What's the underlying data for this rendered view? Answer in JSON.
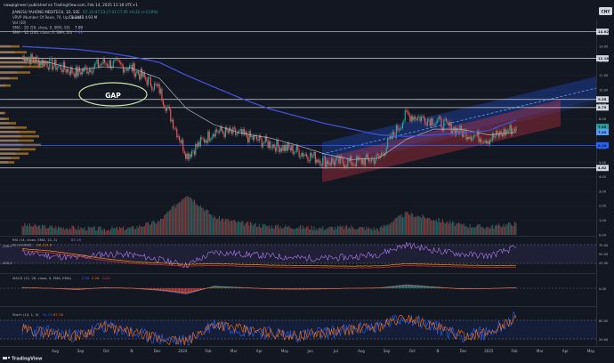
{
  "header": {
    "publisher": "nawpigineeri published on TradingView.com, Feb 14, 2025 13:18 UTC+1",
    "symbol": "JIANGSU YAHONG MEDITECH, 1D, SSE",
    "ohlc": "O7.10 H7.53 L7.01 C7.45 +0.32 (+4.50%)",
    "vrvp_label": "VRVP (Number Of Rows, 70, Up/Down)",
    "vrvp_vals": "3.144B 4.93 M",
    "vol_label": "Vol (30)",
    "sma1_label": "SMA - 1D (50, close, 0, SMA, 50)",
    "sma1_val": "7.09",
    "sma2_label": "SMA - 1D (200, close, 0, SMA, 20)",
    "sma2_val": "7.93"
  },
  "currency": "CNY",
  "gap_label": "GAP",
  "right_axis": {
    "ticks": [
      "14.00",
      "13.00",
      "12.00",
      "11.00",
      "10.00",
      "9.00",
      "8.00",
      "7.00",
      "6.00",
      "5.00",
      "4.00",
      "3.00",
      "2.00",
      "1.00",
      "0.00"
    ],
    "badges": [
      {
        "text": "14.02",
        "color": "#d1d4dc"
      },
      {
        "text": "12.18",
        "color": "#d1d4dc"
      },
      {
        "text": "9.35",
        "color": "#d1d4dc"
      },
      {
        "text": "8.79",
        "color": "#d1d4dc"
      },
      {
        "text": "7.45",
        "color": "#26a69a"
      },
      {
        "text": "7.09",
        "color": "#5b9cf6"
      },
      {
        "text": "6.18",
        "color": "#2962ff"
      },
      {
        "text": "4.62",
        "color": "#d1d4dc"
      }
    ]
  },
  "rsi": {
    "label": "RSI (14, close, SMA, 14, 2)",
    "value": "67.19",
    "sub_label": "Accum/Dist",
    "sub_value": "-52.111 K",
    "left_ticks": [
      "-200.0",
      "-400.0"
    ],
    "right_ticks": [
      "75.00",
      "50.00",
      "25.00"
    ]
  },
  "macd": {
    "label": "MACD (12, 26, close, 9, EMA, EMA)",
    "values": [
      "0.09",
      "0.26",
      "-0.20"
    ],
    "right_ticks": [
      "0.00"
    ]
  },
  "stoch": {
    "label": "Stoch (14, 1, 3)",
    "values": [
      "91.39",
      "87.18"
    ],
    "right_ticks": [
      "80.00",
      "20.00"
    ]
  },
  "x_axis": [
    "Aug",
    "Sep",
    "Oct",
    "N",
    "Dec",
    "2024",
    "Feb",
    "Mar",
    "Apr",
    "May",
    "Jun",
    "Jul",
    "Aug",
    "Sep",
    "Oct",
    "N",
    "Dec",
    "2025",
    "Feb",
    "Mar",
    "Apr",
    "May"
  ],
  "logo": "TradingView",
  "chart_data": {
    "type": "line",
    "title": "JIANGSU YAHONG MEDITECH, 1D, SSE",
    "ylabel": "CNY",
    "ylim": [
      0,
      14.2
    ],
    "x": [
      "2023-08",
      "2023-09",
      "2023-10",
      "2023-11",
      "2023-12",
      "2024-01",
      "2024-02",
      "2024-03",
      "2024-04",
      "2024-05",
      "2024-06",
      "2024-07",
      "2024-08",
      "2024-09",
      "2024-10",
      "2024-11",
      "2024-12",
      "2025-01",
      "2025-02"
    ],
    "series": [
      {
        "values": [
          12.3,
          11.8,
          11.2,
          11.9,
          11.5,
          10.0,
          5.5,
          7.2,
          6.9,
          6.3,
          5.8,
          5.1,
          5.0,
          5.3,
          8.3,
          7.9,
          7.1,
          6.6,
          7.45
        ]
      },
      {
        "name": "SMA 50",
        "values": [
          12.1,
          11.9,
          11.4,
          11.6,
          11.5,
          10.8,
          8.7,
          7.6,
          7.0,
          6.7,
          6.2,
          5.6,
          5.2,
          5.3,
          6.6,
          7.3,
          7.3,
          6.9,
          7.09
        ]
      },
      {
        "name": "SMA 200",
        "values": [
          13.0,
          12.9,
          12.8,
          12.6,
          12.3,
          11.9,
          11.0,
          10.2,
          9.4,
          8.7,
          8.2,
          7.7,
          7.3,
          6.9,
          6.8,
          6.9,
          7.0,
          7.2,
          7.93
        ]
      }
    ],
    "volume": [
      0.5,
      0.4,
      0.35,
      0.3,
      0.35,
      0.7,
      2.1,
      0.9,
      0.6,
      0.45,
      0.4,
      0.35,
      0.4,
      0.3,
      1.1,
      0.8,
      0.5,
      0.4,
      0.6
    ],
    "horizontal_levels": [
      14.02,
      12.18,
      9.35,
      8.79,
      6.18,
      4.62
    ],
    "rsi_value": 67.19,
    "stoch_values": [
      91.39,
      87.18
    ],
    "grid": true,
    "legend": "top-left"
  }
}
